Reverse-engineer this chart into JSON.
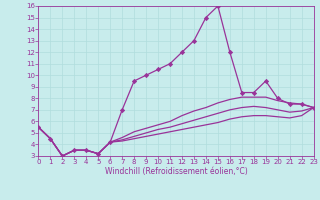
{
  "bg_color": "#c8ecec",
  "line_color": "#993399",
  "grid_color": "#b0dddd",
  "x": [
    0,
    1,
    2,
    3,
    4,
    5,
    6,
    7,
    8,
    9,
    10,
    11,
    12,
    13,
    14,
    15,
    16,
    17,
    18,
    19,
    20,
    21,
    22,
    23
  ],
  "line1": [
    5.5,
    4.5,
    3.0,
    3.5,
    3.5,
    3.2,
    4.2,
    7.0,
    9.5,
    10.0,
    10.5,
    11.0,
    12.0,
    13.0,
    15.0,
    16.0,
    12.0,
    8.5,
    8.5,
    9.5,
    8.0,
    7.5,
    7.5,
    7.2
  ],
  "line2": [
    5.5,
    4.5,
    3.0,
    3.5,
    3.5,
    3.2,
    4.2,
    4.6,
    5.1,
    5.4,
    5.7,
    6.0,
    6.5,
    6.9,
    7.2,
    7.6,
    7.9,
    8.1,
    8.1,
    8.1,
    7.8,
    7.6,
    7.5,
    7.2
  ],
  "line3": [
    5.5,
    4.5,
    3.0,
    3.5,
    3.5,
    3.2,
    4.2,
    4.4,
    4.7,
    5.0,
    5.3,
    5.5,
    5.8,
    6.1,
    6.4,
    6.7,
    7.0,
    7.2,
    7.3,
    7.2,
    7.0,
    6.8,
    6.9,
    7.2
  ],
  "line4": [
    5.5,
    4.5,
    3.0,
    3.5,
    3.5,
    3.2,
    4.2,
    4.3,
    4.5,
    4.7,
    4.9,
    5.1,
    5.3,
    5.5,
    5.7,
    5.9,
    6.2,
    6.4,
    6.5,
    6.5,
    6.4,
    6.3,
    6.5,
    7.2
  ],
  "xlabel": "Windchill (Refroidissement éolien,°C)",
  "ylim": [
    3,
    16
  ],
  "xlim": [
    0,
    23
  ],
  "yticks": [
    3,
    4,
    5,
    6,
    7,
    8,
    9,
    10,
    11,
    12,
    13,
    14,
    15,
    16
  ],
  "xticks": [
    0,
    1,
    2,
    3,
    4,
    5,
    6,
    7,
    8,
    9,
    10,
    11,
    12,
    13,
    14,
    15,
    16,
    17,
    18,
    19,
    20,
    21,
    22,
    23
  ],
  "marker": "D",
  "markersize": 2.2,
  "linewidth": 0.9,
  "tick_fontsize": 5.0,
  "xlabel_fontsize": 5.5
}
